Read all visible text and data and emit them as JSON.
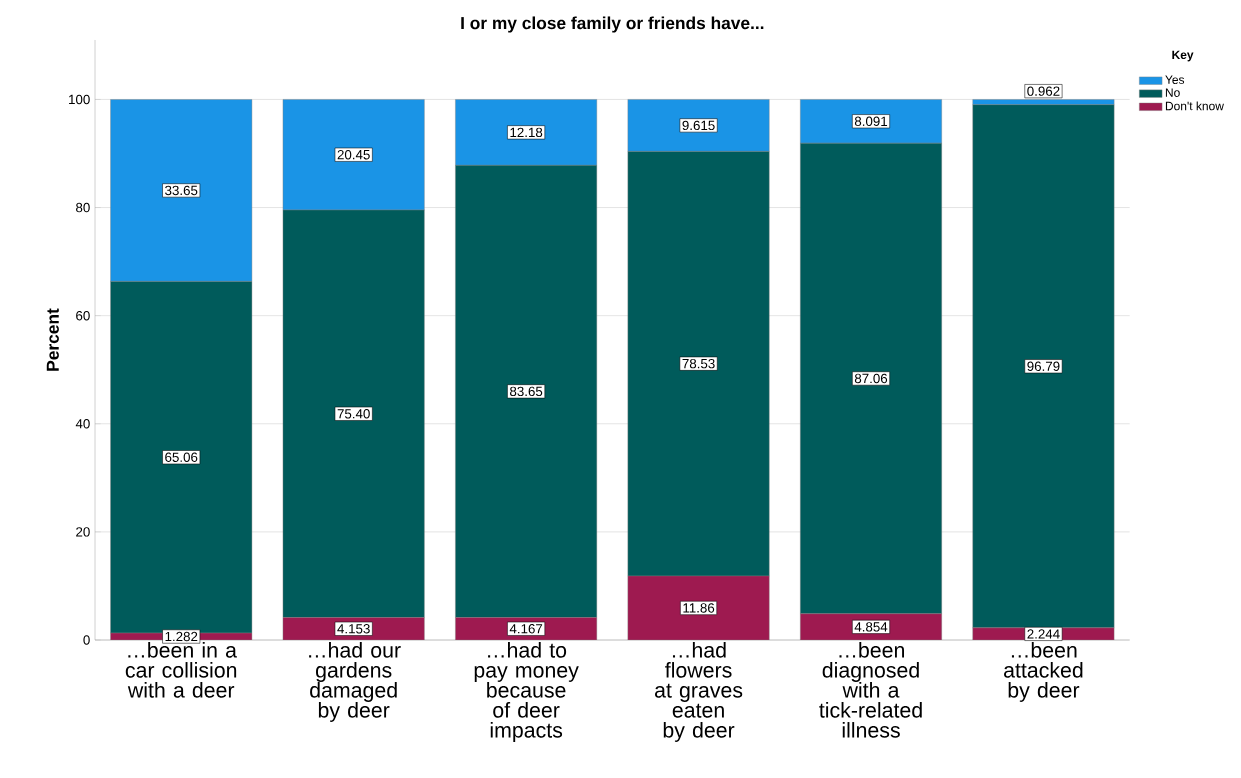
{
  "chart_data": {
    "type": "bar",
    "stacked": true,
    "title": "I or my close family or friends have...",
    "ylabel": "Percent",
    "legend_title": "Key",
    "legend": "top right",
    "grid": "y",
    "categories": [
      "…been in a car collision with a deer",
      "…had our gardens damaged by deer",
      "…had to pay money because of deer impacts",
      "…had flowers at graves eaten by deer",
      "…been diagnosed with a tick-related illness",
      "…been attacked by deer"
    ],
    "ylim": [
      0,
      111
    ],
    "yticks": [
      0,
      20,
      40,
      60,
      80,
      100
    ],
    "series": [
      {
        "name": "Don't know",
        "color": "#9e1a50",
        "values": [
          1.282,
          4.153,
          4.167,
          11.86,
          4.854,
          2.244
        ],
        "value_labels": [
          "1.282",
          "4.153",
          "4.167",
          "11.86",
          "4.854",
          "2.244"
        ]
      },
      {
        "name": "No",
        "color": "#005b5b",
        "values": [
          65.06,
          75.4,
          83.65,
          78.53,
          87.06,
          96.79
        ],
        "value_labels": [
          "65.06",
          "75.40",
          "83.65",
          "78.53",
          "87.06",
          "96.79"
        ]
      },
      {
        "name": "Yes",
        "color": "#1a94e6",
        "values": [
          33.65,
          20.45,
          12.18,
          9.615,
          8.091,
          0.962
        ],
        "value_labels": [
          "33.65",
          "20.45",
          "12.18",
          "9.615",
          "8.091",
          "0.962"
        ]
      }
    ]
  }
}
